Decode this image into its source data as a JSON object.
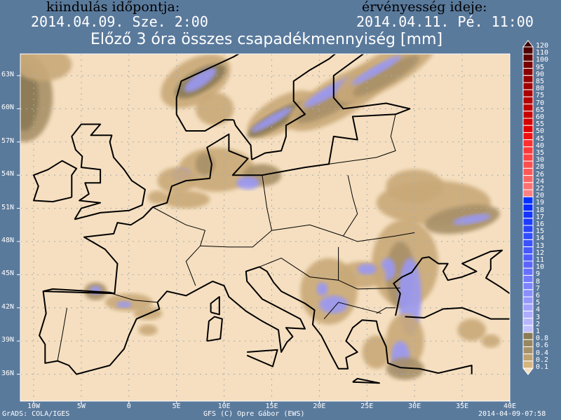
{
  "header": {
    "start_label": "kiindulás időpontja:",
    "start_value": "2014.04.09. Sze. 2:00",
    "valid_label": "érvényesség ideje:",
    "valid_value": "2014.04.11. Pé. 11:00",
    "title": "Előző 3 óra összes csapadékmennyiség [mm]"
  },
  "map": {
    "lon_range": [
      -11.5,
      40
    ],
    "lat_range": [
      33.8,
      65.2
    ],
    "grid": "dotted",
    "background_color": "#f5dfc0",
    "lat_ticks": [
      "63N",
      "60N",
      "57N",
      "54N",
      "51N",
      "48N",
      "45N",
      "42N",
      "39N",
      "36N"
    ],
    "lon_ticks": [
      "10W",
      "5W",
      "0",
      "5E",
      "10E",
      "15E",
      "20E",
      "25E",
      "30E",
      "35E",
      "40E"
    ]
  },
  "legend": {
    "levels": [
      "120",
      "110",
      "100",
      "95",
      "90",
      "85",
      "80",
      "75",
      "70",
      "65",
      "60",
      "55",
      "50",
      "45",
      "40",
      "35",
      "30",
      "28",
      "26",
      "24",
      "22",
      "20",
      "19",
      "18",
      "17",
      "16",
      "15",
      "14",
      "13",
      "12",
      "11",
      "10",
      "9",
      "8",
      "7",
      "6",
      "5",
      "4",
      "3",
      "2",
      "1",
      "0.8",
      "0.6",
      "0.4",
      "0.2",
      "0.1"
    ],
    "colors_top_to_bottom": [
      "#3c0000",
      "#4e0000",
      "#600000",
      "#780000",
      "#880000",
      "#960000",
      "#a00000",
      "#aa0000",
      "#b40000",
      "#be0000",
      "#c80000",
      "#d40000",
      "#e00000",
      "#f01010",
      "#ff3030",
      "#ff3a3a",
      "#ff4444",
      "#ff4e4e",
      "#ff5858",
      "#ff6464",
      "#ff7070",
      "#ff8080",
      "#0030ff",
      "#0a2cff",
      "#1434ff",
      "#1e3cff",
      "#2844ff",
      "#324cff",
      "#3c52ff",
      "#4658ff",
      "#505eff",
      "#5c66ff",
      "#6670ff",
      "#727aff",
      "#7e84ff",
      "#8a8eff",
      "#9698ff",
      "#a2a2ff",
      "#aeacff",
      "#b8b6ff",
      "#c2c0ff",
      "#8a7a55",
      "#978660",
      "#a7926a",
      "#bfa271",
      "#d6b47e",
      "#f5dfc0"
    ]
  },
  "footer": {
    "left": "GrADS: COLA/IGES",
    "center": "GFS (C) Opre Gábor (EWS)",
    "right": "2014-04-09-07:58"
  }
}
